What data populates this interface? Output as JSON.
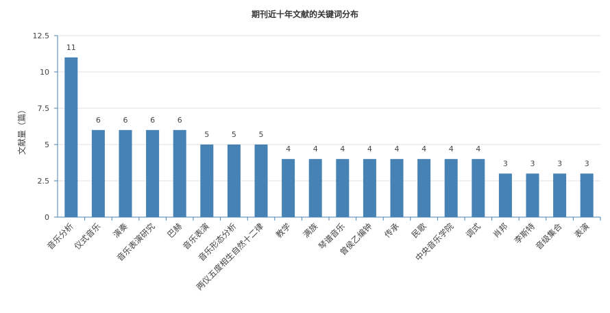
{
  "chart_data": {
    "type": "bar",
    "title": "期刊近十年文献的关键词分布",
    "xlabel": "",
    "ylabel": "文献量（篇）",
    "ylim": [
      0,
      12.5
    ],
    "yticks": [
      "0",
      "2.5",
      "5",
      "7.5",
      "10",
      "12.5"
    ],
    "grid": true,
    "color": "#4682b4",
    "categories": [
      "音乐分析",
      "仪式音乐",
      "演奏",
      "音乐表演研究",
      "巴赫",
      "音乐表演",
      "音乐形态分析",
      "两仪五度相生自然十二律",
      "教学",
      "满族",
      "琴谱音乐",
      "曾侯乙编钟",
      "传承",
      "民歌",
      "中央音乐学院",
      "调式",
      "肖邦",
      "李斯特",
      "音级集合",
      "表演"
    ],
    "values": [
      11,
      6,
      6,
      6,
      6,
      5,
      5,
      5,
      4,
      4,
      4,
      4,
      4,
      4,
      4,
      4,
      3,
      3,
      3,
      3
    ]
  }
}
